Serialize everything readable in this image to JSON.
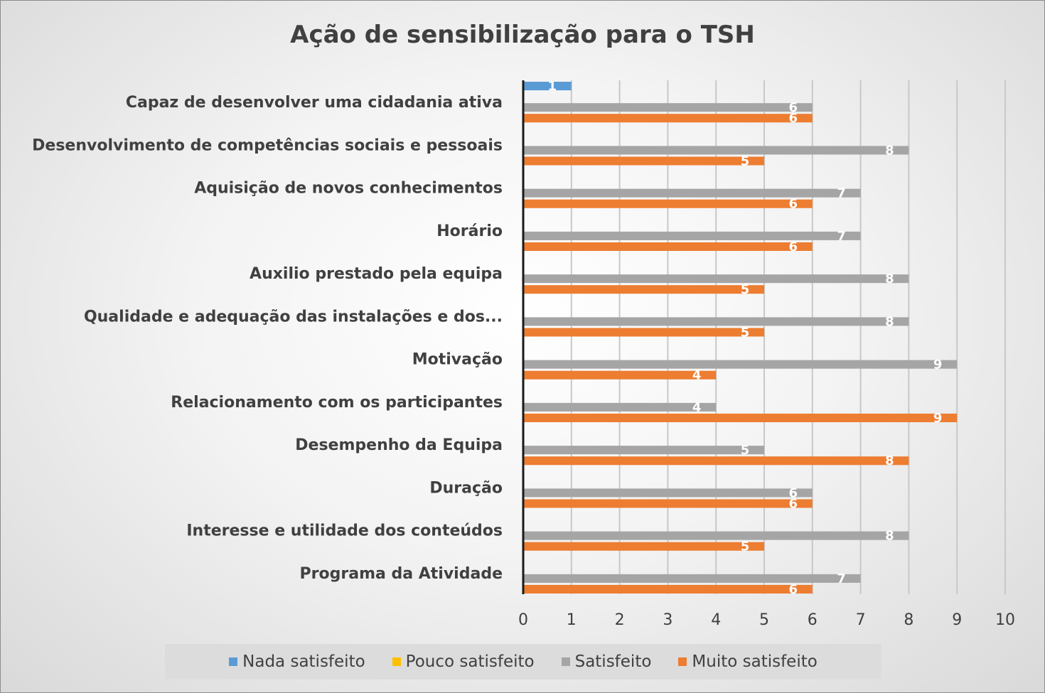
{
  "chart_data": {
    "type": "bar",
    "orientation": "horizontal",
    "title": "Ação de sensibilização para o TSH",
    "categories": [
      "Capaz de desenvolver uma cidadania ativa",
      "Desenvolvimento de competências sociais e pessoais",
      "Aquisição de novos conhecimentos",
      "Horário",
      "Auxilio prestado pela equipa",
      "Qualidade e adequação das instalações e dos...",
      "Motivação",
      "Relacionamento com os participantes",
      "Desempenho da Equipa",
      "Duração",
      "Interesse  e utilidade dos conteúdos",
      "Programa da Atividade"
    ],
    "series": [
      {
        "name": "Nada satisfeito",
        "color": "#5b9bd5",
        "values": [
          1,
          0,
          0,
          0,
          0,
          0,
          0,
          0,
          0,
          0,
          0,
          0
        ],
        "labels": [
          "1",
          "",
          "",
          "",
          "",
          "",
          "",
          "",
          "",
          "",
          "",
          ""
        ]
      },
      {
        "name": "Pouco satisfeito",
        "color": "#ffc000",
        "values": [
          0,
          0,
          0,
          0,
          0,
          0,
          0,
          0,
          0,
          0,
          0,
          0
        ],
        "labels": [
          "",
          "",
          "",
          "",
          "",
          "",
          "",
          "",
          "",
          "",
          "",
          ""
        ]
      },
      {
        "name": "Satisfeito",
        "color": "#a5a5a5",
        "values": [
          6,
          8,
          7,
          7,
          8,
          8,
          9,
          4,
          5,
          6,
          8,
          7
        ],
        "labels": [
          "6",
          "8",
          "7",
          "7",
          "8",
          "8",
          "9",
          "4",
          "5",
          "6",
          "8",
          "7"
        ]
      },
      {
        "name": "Muito satisfeito",
        "color": "#ed7d31",
        "values": [
          6,
          5,
          6,
          6,
          5,
          5,
          4,
          9,
          8,
          6,
          5,
          6
        ],
        "labels": [
          "6",
          "5",
          "6",
          "6",
          "5",
          "5",
          "4",
          "9",
          "8",
          "6",
          "5",
          "6"
        ]
      }
    ],
    "xlim": [
      0,
      10
    ],
    "xticks": [
      "0",
      "1",
      "2",
      "3",
      "4",
      "5",
      "6",
      "7",
      "8",
      "9",
      "10"
    ],
    "grid": true,
    "legend_position": "bottom"
  }
}
